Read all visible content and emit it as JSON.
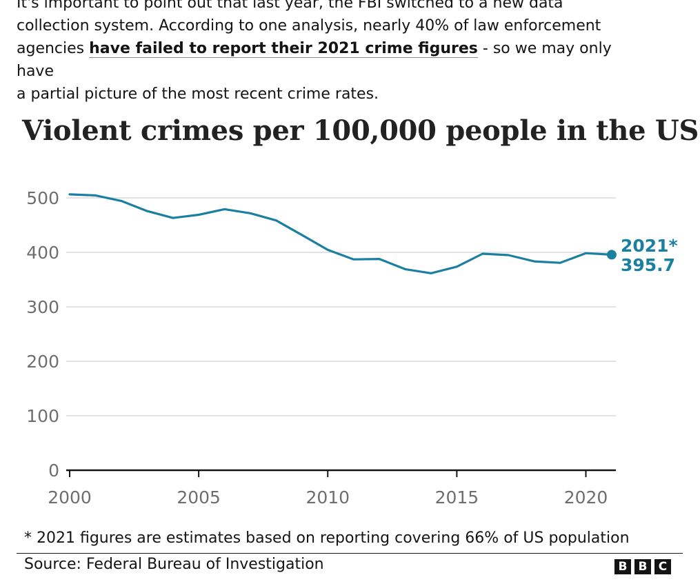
{
  "intro": {
    "line1": "It's important to point out that last year, the FBI switched to a new data",
    "line2": "collection system. According to one analysis, nearly 40% of law enforcement",
    "line3_before": "agencies ",
    "link_text": "have failed to report their 2021 crime figures",
    "line3_after": " - so we may only have",
    "line4": "a partial picture of the most recent crime rates."
  },
  "chart_data": {
    "type": "line",
    "title": "Violent crimes per 100,000 people in the US",
    "xlabel": "",
    "ylabel": "",
    "x": [
      2000,
      2001,
      2002,
      2003,
      2004,
      2005,
      2006,
      2007,
      2008,
      2009,
      2010,
      2011,
      2012,
      2013,
      2014,
      2015,
      2016,
      2017,
      2018,
      2019,
      2020,
      2021
    ],
    "series": [
      {
        "values": [
          506.5,
          504.5,
          494.4,
          475.8,
          463.2,
          469.0,
          479.3,
          471.8,
          458.6,
          431.9,
          404.5,
          387.1,
          387.8,
          369.1,
          361.6,
          373.7,
          397.5,
          394.9,
          383.4,
          380.8,
          398.5,
          395.7
        ],
        "color": "#1b7fa0"
      }
    ],
    "xticks": [
      "2000",
      "2005",
      "2010",
      "2015",
      "2020"
    ],
    "yticks": [
      "0",
      "100",
      "200",
      "300",
      "400",
      "500"
    ],
    "xlim": [
      2000,
      2021
    ],
    "ylim": [
      0,
      500
    ],
    "grid": true,
    "end_label": {
      "year": "2021*",
      "value": "395.7"
    }
  },
  "footnote": "* 2021 figures are estimates based on reporting covering 66% of US population",
  "source": "Source: Federal Bureau of Investigation",
  "logo": [
    "B",
    "B",
    "C"
  ]
}
